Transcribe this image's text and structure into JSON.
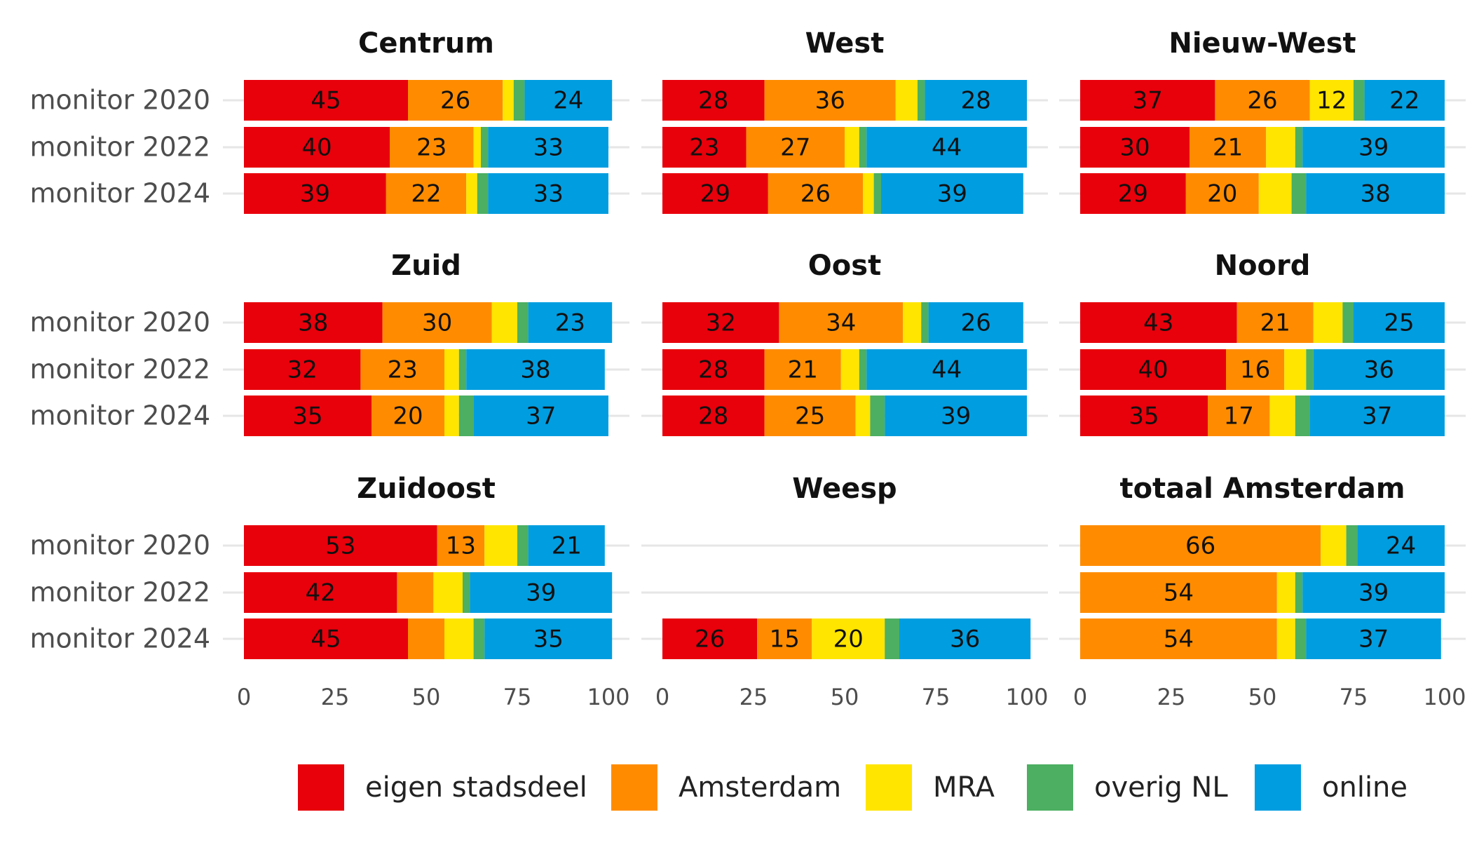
{
  "chart_data": {
    "type": "bar",
    "orientation": "horizontal",
    "stacked": true,
    "xlim": [
      0,
      100
    ],
    "x_ticks": [
      "0",
      "25",
      "50",
      "75",
      "100"
    ],
    "grid": true,
    "legend_position": "bottom",
    "rows": [
      "monitor 2020",
      "monitor 2022",
      "monitor 2024"
    ],
    "legend": [
      {
        "key": "eigen",
        "name": "eigen stadsdeel",
        "color": "#E8000B"
      },
      {
        "key": "ams",
        "name": "Amsterdam",
        "color": "#FF8C00"
      },
      {
        "key": "mra",
        "name": "MRA",
        "color": "#FFE500"
      },
      {
        "key": "nl",
        "name": "overig NL",
        "color": "#4CAF62"
      },
      {
        "key": "online",
        "name": "online",
        "color": "#009DE0"
      }
    ],
    "panels": [
      {
        "title": "Centrum",
        "bars": [
          {
            "values": [
              45,
              26,
              3,
              3,
              24
            ],
            "labels": [
              "45",
              "26",
              "",
              "",
              "24"
            ]
          },
          {
            "values": [
              40,
              23,
              2,
              2,
              33
            ],
            "labels": [
              "40",
              "23",
              "",
              "",
              "33"
            ]
          },
          {
            "values": [
              39,
              22,
              3,
              3,
              33
            ],
            "labels": [
              "39",
              "22",
              "",
              "",
              "33"
            ]
          }
        ]
      },
      {
        "title": "West",
        "bars": [
          {
            "values": [
              28,
              36,
              6,
              2,
              28
            ],
            "labels": [
              "28",
              "36",
              "",
              "",
              "28"
            ]
          },
          {
            "values": [
              23,
              27,
              4,
              2,
              44
            ],
            "labels": [
              "23",
              "27",
              "",
              "",
              "44"
            ]
          },
          {
            "values": [
              29,
              26,
              3,
              2,
              39
            ],
            "labels": [
              "29",
              "26",
              "",
              "",
              "39"
            ]
          }
        ]
      },
      {
        "title": "Nieuw-West",
        "bars": [
          {
            "values": [
              37,
              26,
              12,
              3,
              22
            ],
            "labels": [
              "37",
              "26",
              "12",
              "",
              "22"
            ]
          },
          {
            "values": [
              30,
              21,
              8,
              2,
              39
            ],
            "labels": [
              "30",
              "21",
              "",
              "",
              "39"
            ]
          },
          {
            "values": [
              29,
              20,
              9,
              4,
              38
            ],
            "labels": [
              "29",
              "20",
              "",
              "",
              "38"
            ]
          }
        ]
      },
      {
        "title": "Zuid",
        "bars": [
          {
            "values": [
              38,
              30,
              7,
              3,
              23
            ],
            "labels": [
              "38",
              "30",
              "",
              "",
              "23"
            ]
          },
          {
            "values": [
              32,
              23,
              4,
              2,
              38
            ],
            "labels": [
              "32",
              "23",
              "",
              "",
              "38"
            ]
          },
          {
            "values": [
              35,
              20,
              4,
              4,
              37
            ],
            "labels": [
              "35",
              "20",
              "",
              "",
              "37"
            ]
          }
        ]
      },
      {
        "title": "Oost",
        "bars": [
          {
            "values": [
              32,
              34,
              5,
              2,
              26
            ],
            "labels": [
              "32",
              "34",
              "",
              "",
              "26"
            ]
          },
          {
            "values": [
              28,
              21,
              5,
              2,
              44
            ],
            "labels": [
              "28",
              "21",
              "",
              "",
              "44"
            ]
          },
          {
            "values": [
              28,
              25,
              4,
              4,
              39
            ],
            "labels": [
              "28",
              "25",
              "",
              "",
              "39"
            ]
          }
        ]
      },
      {
        "title": "Noord",
        "bars": [
          {
            "values": [
              43,
              21,
              8,
              3,
              25
            ],
            "labels": [
              "43",
              "21",
              "",
              "",
              "25"
            ]
          },
          {
            "values": [
              40,
              16,
              6,
              2,
              36
            ],
            "labels": [
              "40",
              "16",
              "",
              "",
              "36"
            ]
          },
          {
            "values": [
              35,
              17,
              7,
              4,
              37
            ],
            "labels": [
              "35",
              "17",
              "",
              "",
              "37"
            ]
          }
        ]
      },
      {
        "title": "Zuidoost",
        "bars": [
          {
            "values": [
              53,
              13,
              9,
              3,
              21
            ],
            "labels": [
              "53",
              "13",
              "",
              "",
              "21"
            ]
          },
          {
            "values": [
              42,
              10,
              8,
              2,
              39
            ],
            "labels": [
              "42",
              "",
              "",
              "",
              "39"
            ]
          },
          {
            "values": [
              45,
              10,
              8,
              3,
              35
            ],
            "labels": [
              "45",
              "",
              "",
              "",
              "35"
            ]
          }
        ]
      },
      {
        "title": "Weesp",
        "bars": [
          null,
          null,
          {
            "values": [
              26,
              15,
              20,
              4,
              36
            ],
            "labels": [
              "26",
              "15",
              "20",
              "",
              "36"
            ]
          }
        ]
      },
      {
        "title": "totaal Amsterdam",
        "bars": [
          {
            "values": [
              0,
              66,
              7,
              3,
              24
            ],
            "labels": [
              "",
              "66",
              "",
              "",
              "24"
            ]
          },
          {
            "values": [
              0,
              54,
              5,
              2,
              39
            ],
            "labels": [
              "",
              "54",
              "",
              "",
              "39"
            ]
          },
          {
            "values": [
              0,
              54,
              5,
              3,
              37
            ],
            "labels": [
              "",
              "54",
              "",
              "",
              "37"
            ]
          }
        ]
      }
    ]
  }
}
